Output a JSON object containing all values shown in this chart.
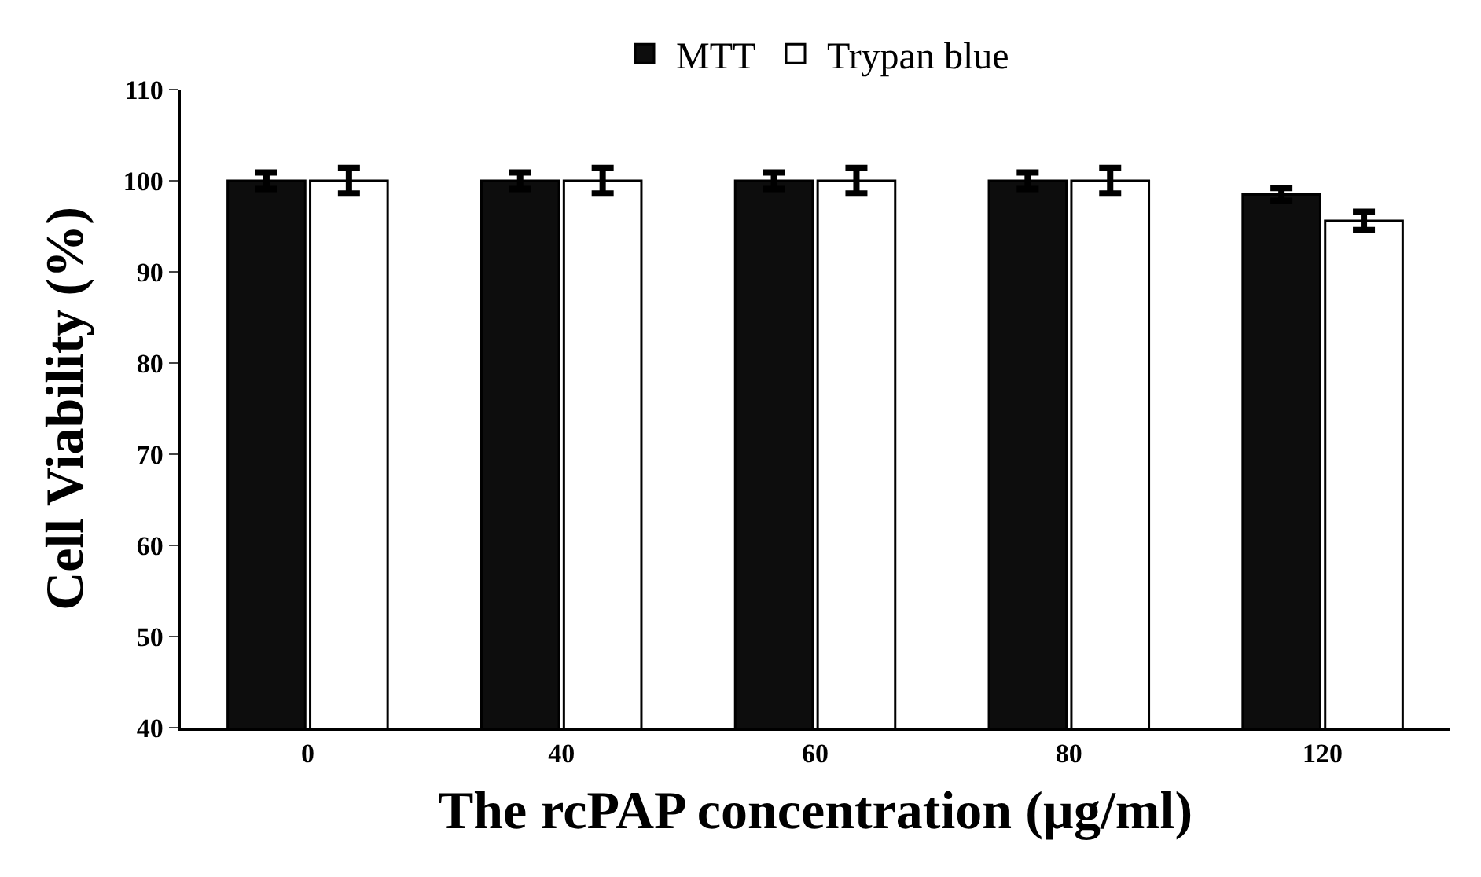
{
  "chart_data": {
    "type": "bar",
    "xlabel": "The rcPAP concentration (µg/ml)",
    "ylabel": "Cell Viability (%)",
    "categories": [
      "0",
      "40",
      "60",
      "80",
      "120"
    ],
    "series": [
      {
        "name": "MTT",
        "color": "#0d0d0d",
        "values": [
          100,
          100,
          100,
          100,
          98.5
        ],
        "errors": [
          0.9,
          0.9,
          0.9,
          0.9,
          0.7
        ]
      },
      {
        "name": "Trypan blue",
        "color": "#ffffff",
        "values": [
          100,
          100,
          100,
          100,
          95.6
        ],
        "errors": [
          1.4,
          1.4,
          1.4,
          1.4,
          1.0
        ]
      }
    ],
    "ylim": [
      40,
      110
    ],
    "yticks": [
      40,
      50,
      60,
      70,
      80,
      90,
      100,
      110
    ],
    "legend": "top"
  }
}
